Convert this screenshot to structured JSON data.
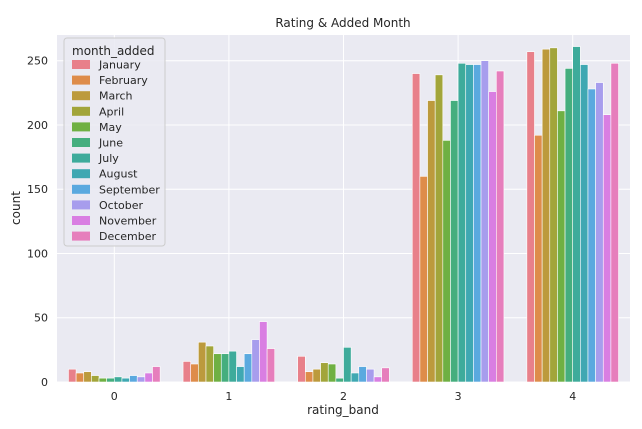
{
  "chart_data": {
    "type": "bar",
    "title": "Rating & Added Month",
    "xlabel": "rating_band",
    "ylabel": "count",
    "ylim": [
      0,
      270
    ],
    "y_ticks": [
      0,
      50,
      100,
      150,
      200,
      250
    ],
    "grid": true,
    "background": "#eaeaf2",
    "legend_title": "month_added",
    "legend_position": "top-left",
    "categories": [
      "0",
      "1",
      "2",
      "3",
      "4"
    ],
    "series": [
      {
        "name": "January",
        "color": "#e8808a",
        "values": [
          10,
          16,
          20,
          240,
          257
        ]
      },
      {
        "name": "February",
        "color": "#de8c4a",
        "values": [
          7,
          14,
          8,
          160,
          192
        ]
      },
      {
        "name": "March",
        "color": "#bc9a3c",
        "values": [
          8,
          31,
          10,
          219,
          259
        ]
      },
      {
        "name": "April",
        "color": "#a2a53a",
        "values": [
          5,
          28,
          15,
          239,
          260
        ]
      },
      {
        "name": "May",
        "color": "#6fb043",
        "values": [
          3,
          22,
          14,
          188,
          211
        ]
      },
      {
        "name": "June",
        "color": "#45ae7e",
        "values": [
          3,
          22,
          3,
          219,
          244
        ]
      },
      {
        "name": "July",
        "color": "#3eab9b",
        "values": [
          4,
          24,
          27,
          248,
          261
        ]
      },
      {
        "name": "August",
        "color": "#3fa8b2",
        "values": [
          3,
          12,
          7,
          247,
          247
        ]
      },
      {
        "name": "September",
        "color": "#5aa9df",
        "values": [
          5,
          22,
          12,
          247,
          228
        ]
      },
      {
        "name": "October",
        "color": "#a79ded",
        "values": [
          4,
          33,
          10,
          250,
          233
        ]
      },
      {
        "name": "November",
        "color": "#d97ee2",
        "values": [
          7,
          47,
          4,
          226,
          208
        ]
      },
      {
        "name": "December",
        "color": "#e67ebc",
        "values": [
          12,
          26,
          11,
          242,
          248
        ]
      }
    ]
  }
}
